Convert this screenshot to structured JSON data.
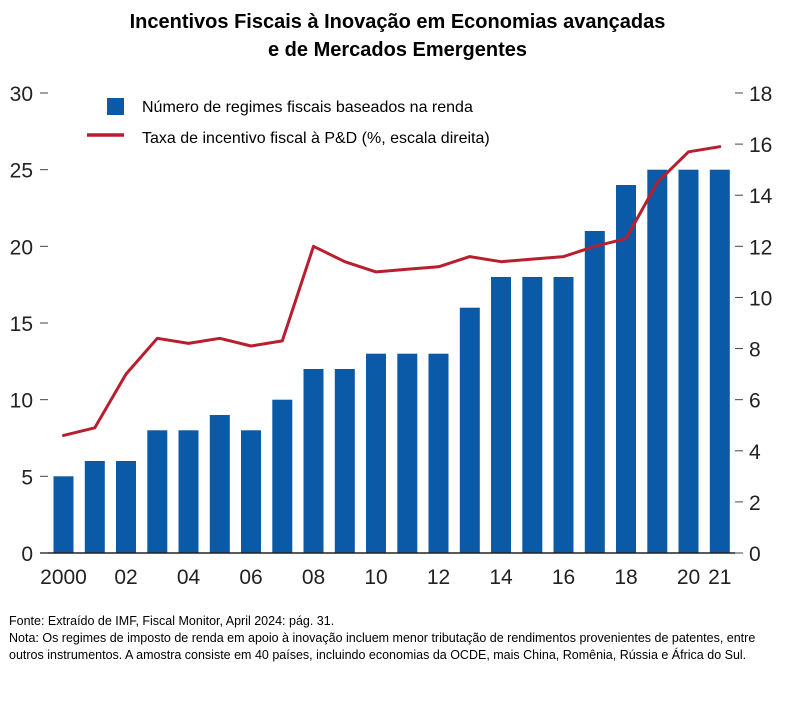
{
  "title": {
    "line1": "Incentivos Fiscais à Inovação em Economias avançadas",
    "line2": "e de Mercados Emergentes"
  },
  "colors": {
    "bar": "#0a5aa8",
    "line": "#b81f2e"
  },
  "legend": {
    "bars_label": "Número de regimes fiscais baseados na renda",
    "line_label": "Taxa de incentivo fiscal à P&D (%, escala direita)",
    "placement": "top-left"
  },
  "notes": {
    "source": "Fonte: Extraído de IMF, Fiscal Monitor, April 2024: pág. 31.",
    "note": "Nota: Os regimes de imposto de renda em apoio à inovação incluem menor tributação de rendimentos provenientes de patentes, entre outros instrumentos. A amostra consiste em 40 países, incluindo economias da OCDE, mais China, Romênia, Rússia e África do Sul."
  },
  "chart_data": {
    "type": "bar",
    "title": "Incentivos Fiscais à Inovação em Economias avançadas e de Mercados Emergentes",
    "categories": [
      2000,
      2001,
      2002,
      2003,
      2004,
      2005,
      2006,
      2007,
      2008,
      2009,
      2010,
      2011,
      2012,
      2013,
      2014,
      2015,
      2016,
      2017,
      2018,
      2019,
      2020,
      2021
    ],
    "x_tick_labels": [
      {
        "year": 2000,
        "label": "2000"
      },
      {
        "year": 2002,
        "label": "02"
      },
      {
        "year": 2004,
        "label": "04"
      },
      {
        "year": 2006,
        "label": "06"
      },
      {
        "year": 2008,
        "label": "08"
      },
      {
        "year": 2010,
        "label": "10"
      },
      {
        "year": 2012,
        "label": "12"
      },
      {
        "year": 2014,
        "label": "14"
      },
      {
        "year": 2016,
        "label": "16"
      },
      {
        "year": 2018,
        "label": "18"
      },
      {
        "year": 2020,
        "label": "20"
      },
      {
        "year": 2021,
        "label": "21"
      }
    ],
    "series": [
      {
        "name": "Número de regimes fiscais baseados na renda",
        "type": "bar",
        "axis": "left",
        "values": [
          5,
          6,
          6,
          8,
          8,
          9,
          8,
          10,
          12,
          12,
          13,
          13,
          13,
          16,
          18,
          18,
          18,
          21,
          24,
          25,
          25,
          25
        ]
      },
      {
        "name": "Taxa de incentivo fiscal à P&D (%, escala direita)",
        "type": "line",
        "axis": "right",
        "values": [
          4.6,
          4.9,
          7.0,
          8.4,
          8.2,
          8.4,
          8.1,
          8.3,
          12.0,
          11.4,
          11.0,
          11.1,
          11.2,
          11.6,
          11.4,
          11.5,
          11.6,
          12.0,
          12.3,
          14.5,
          15.7,
          15.9
        ]
      }
    ],
    "y_left": {
      "ylim": [
        0,
        30
      ],
      "ticks": [
        0,
        5,
        10,
        15,
        20,
        25,
        30
      ],
      "tick_labels": [
        "0",
        "5",
        "10",
        "15",
        "20",
        "25",
        "30"
      ]
    },
    "y_right": {
      "ylim": [
        0,
        18
      ],
      "ticks": [
        0,
        2,
        4,
        6,
        8,
        10,
        12,
        14,
        16,
        18
      ],
      "tick_labels": [
        "0",
        "2",
        "4",
        "6",
        "8",
        "10",
        "12",
        "14",
        "16",
        "18"
      ]
    },
    "grid": false
  }
}
